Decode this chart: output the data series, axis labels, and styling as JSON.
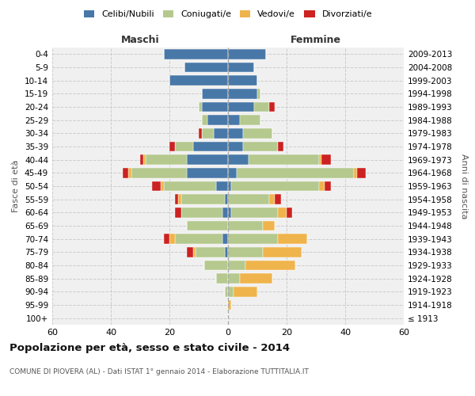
{
  "age_groups": [
    "100+",
    "95-99",
    "90-94",
    "85-89",
    "80-84",
    "75-79",
    "70-74",
    "65-69",
    "60-64",
    "55-59",
    "50-54",
    "45-49",
    "40-44",
    "35-39",
    "30-34",
    "25-29",
    "20-24",
    "15-19",
    "10-14",
    "5-9",
    "0-4"
  ],
  "birth_years": [
    "≤ 1913",
    "1914-1918",
    "1919-1923",
    "1924-1928",
    "1929-1933",
    "1934-1938",
    "1939-1943",
    "1944-1948",
    "1949-1953",
    "1954-1958",
    "1959-1963",
    "1964-1968",
    "1969-1973",
    "1974-1978",
    "1979-1983",
    "1984-1988",
    "1989-1993",
    "1994-1998",
    "1999-2003",
    "2004-2008",
    "2009-2013"
  ],
  "maschi": {
    "celibi": [
      0,
      0,
      0,
      0,
      0,
      1,
      2,
      0,
      2,
      1,
      4,
      14,
      14,
      12,
      5,
      7,
      9,
      9,
      20,
      15,
      22
    ],
    "coniugati": [
      0,
      0,
      1,
      4,
      8,
      10,
      16,
      14,
      14,
      15,
      18,
      19,
      14,
      6,
      4,
      2,
      1,
      0,
      0,
      0,
      0
    ],
    "vedovi": [
      0,
      0,
      0,
      0,
      0,
      1,
      2,
      0,
      0,
      1,
      1,
      1,
      1,
      0,
      0,
      0,
      0,
      0,
      0,
      0,
      0
    ],
    "divorziati": [
      0,
      0,
      0,
      0,
      0,
      2,
      2,
      0,
      2,
      1,
      3,
      2,
      1,
      2,
      1,
      0,
      0,
      0,
      0,
      0,
      0
    ]
  },
  "femmine": {
    "nubili": [
      0,
      0,
      0,
      0,
      0,
      0,
      0,
      0,
      1,
      0,
      1,
      3,
      7,
      5,
      5,
      4,
      9,
      10,
      10,
      9,
      13
    ],
    "coniugate": [
      0,
      0,
      2,
      4,
      6,
      12,
      17,
      12,
      16,
      14,
      30,
      40,
      24,
      12,
      10,
      7,
      5,
      1,
      0,
      0,
      0
    ],
    "vedove": [
      0,
      1,
      8,
      11,
      17,
      13,
      10,
      4,
      3,
      2,
      2,
      1,
      1,
      0,
      0,
      0,
      0,
      0,
      0,
      0,
      0
    ],
    "divorziate": [
      0,
      0,
      0,
      0,
      0,
      0,
      0,
      0,
      2,
      2,
      2,
      3,
      3,
      2,
      0,
      0,
      2,
      0,
      0,
      0,
      0
    ]
  },
  "colors": {
    "celibi": "#4878a8",
    "coniugati": "#b5c98e",
    "vedovi": "#f0b44c",
    "divorziati": "#cc2222"
  },
  "title": "Popolazione per età, sesso e stato civile - 2014",
  "subtitle": "COMUNE DI PIOVERA (AL) - Dati ISTAT 1° gennaio 2014 - Elaborazione TUTTITALIA.IT",
  "label_maschi": "Maschi",
  "label_femmine": "Femmine",
  "ylabel_left": "Fasce di età",
  "ylabel_right": "Anni di nascita",
  "legend_labels": [
    "Celibi/Nubili",
    "Coniugati/e",
    "Vedovi/e",
    "Divorziati/e"
  ],
  "xlim": 60,
  "bg_plot": "#f0f0f0",
  "bg_fig": "#ffffff",
  "grid_color": "#cccccc"
}
